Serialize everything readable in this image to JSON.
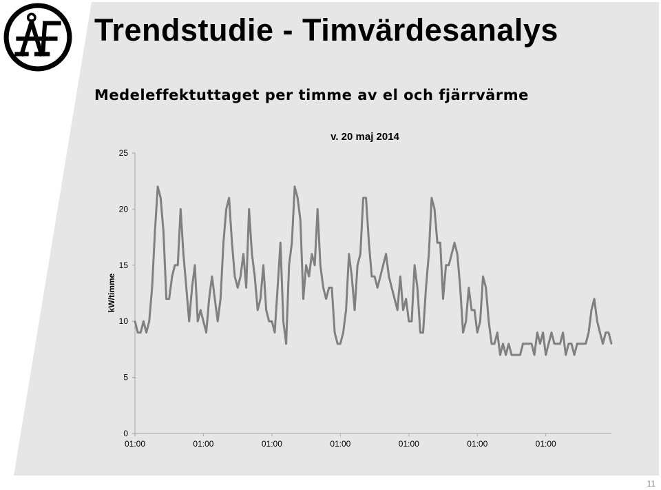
{
  "slide": {
    "title": "Trendstudie - Timvärdesanalys",
    "subtitle": "Medeleffektuttaget per timme av el och fjärrvärme",
    "page_number": "11",
    "logo": "ÅF",
    "colors": {
      "slide_bg": "#e6e6e6",
      "line": "#808080",
      "axis": "#a6a6a6"
    }
  },
  "chart_data": {
    "type": "line",
    "title": "v. 20 maj 2014",
    "xlabel": "",
    "ylabel": "kW/timme",
    "ylim": [
      0,
      25
    ],
    "y_ticks": [
      "0",
      "5",
      "10",
      "15",
      "20",
      "25"
    ],
    "x_tick_labels": [
      "01:00",
      "01:00",
      "01:00",
      "01:00",
      "01:00",
      "01:00",
      "01:00"
    ],
    "hours_between_x_ticks": 24,
    "grid": false,
    "legend": "none",
    "series": [
      {
        "values": [
          10,
          9,
          9,
          10,
          9,
          10,
          13,
          18,
          22,
          21,
          18,
          12,
          12,
          14,
          15,
          15,
          20,
          16,
          13,
          10,
          13,
          15,
          10,
          11,
          10,
          9,
          12,
          14,
          12,
          10,
          12,
          17,
          20,
          21,
          17,
          14,
          13,
          14,
          16,
          13,
          20,
          16,
          14,
          11,
          12,
          15,
          11,
          10,
          10,
          9,
          13,
          17,
          10,
          8,
          15,
          17,
          22,
          21,
          19,
          12,
          15,
          14,
          16,
          15,
          20,
          15,
          13,
          12,
          13,
          13,
          9,
          8,
          8,
          9,
          11,
          16,
          14,
          11,
          15,
          16,
          21,
          21,
          17,
          14,
          14,
          13,
          14,
          15,
          16,
          14,
          13,
          12,
          11,
          14,
          11,
          12,
          10,
          10,
          15,
          13,
          9,
          9,
          13,
          16,
          21,
          20,
          17,
          17,
          12,
          15,
          15,
          16,
          17,
          16,
          13,
          9,
          10,
          13,
          11,
          11,
          9,
          10,
          14,
          13,
          10,
          8,
          8,
          9,
          7,
          8,
          7,
          8,
          7,
          7,
          7,
          7,
          8,
          8,
          8,
          8,
          7,
          9,
          8,
          9,
          7,
          8,
          9,
          8,
          8,
          8,
          9,
          7,
          8,
          8,
          7,
          8,
          8,
          8,
          8,
          9,
          11,
          12,
          10,
          9,
          8,
          9,
          9,
          8
        ]
      }
    ]
  }
}
